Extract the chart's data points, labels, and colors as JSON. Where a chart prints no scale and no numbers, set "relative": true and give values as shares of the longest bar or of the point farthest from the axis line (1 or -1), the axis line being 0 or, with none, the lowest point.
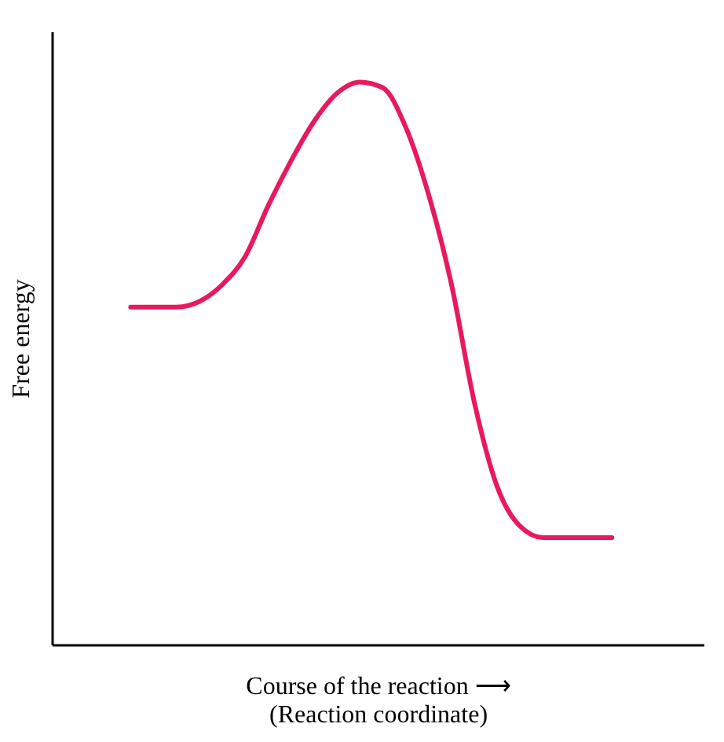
{
  "chart_data": {
    "type": "line",
    "relative": true,
    "ylabel": "Free energy",
    "xlabel": "Course of the reaction ⟶\n(Reaction coordinate)",
    "categories": [
      null,
      null,
      null,
      null,
      null,
      null,
      null,
      null,
      null,
      null,
      null,
      null,
      null,
      null,
      null,
      null,
      null,
      null,
      null,
      null,
      null,
      null
    ],
    "series": [
      {
        "color": "#e8195f",
        "values": [
          0.6,
          0.6,
          0.6,
          0.61,
          0.64,
          0.69,
          0.78,
          0.86,
          0.93,
          0.98,
          1.0,
          0.99,
          0.92,
          0.8,
          0.64,
          0.43,
          0.28,
          0.21,
          0.19,
          0.19,
          0.19,
          0.19
        ]
      }
    ],
    "grid": false,
    "marker": "none",
    "line_style": "solid",
    "tick_labels": false
  }
}
